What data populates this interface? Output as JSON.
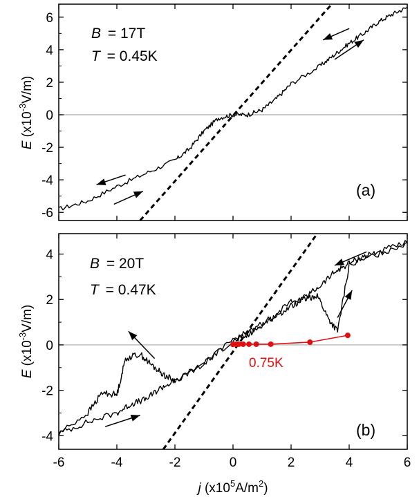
{
  "chart_data": [
    {
      "type": "line",
      "panel_label": "(a)",
      "annotation_B": "B = 17T",
      "annotation_T": "T = 0.45K",
      "annotation_B_var": "B",
      "annotation_B_val": "= 17T",
      "annotation_T_var": "T",
      "annotation_T_val": "= 0.45K",
      "ylabel": "E (x10⁻³V/m)",
      "xlim": [
        -6,
        6
      ],
      "ylim": [
        -6.5,
        6.8
      ],
      "yticks": [
        -6,
        -4,
        -2,
        0,
        2,
        4,
        6
      ],
      "ytick_labels": [
        "-6",
        "-4",
        "-2",
        "0",
        "2",
        "4",
        "6"
      ],
      "zero_line": true,
      "series": [
        {
          "style": "solid",
          "color": "#000000",
          "x": [
            -6,
            -5,
            -4,
            -3,
            -2,
            -1.5,
            -1,
            -0.5,
            0,
            0.5,
            1,
            1.5,
            2,
            3,
            3.5,
            4,
            4.5,
            5,
            5.5,
            6
          ],
          "y": [
            -5.8,
            -5.3,
            -4.4,
            -3.6,
            -2.8,
            -2.1,
            -1.0,
            -0.2,
            0.0,
            0.0,
            0.3,
            1.0,
            1.9,
            3.0,
            3.7,
            4.4,
            5.0,
            5.7,
            6.2,
            6.6
          ]
        },
        {
          "style": "dashed",
          "color": "#000000",
          "x": [
            -3.2,
            3.4
          ],
          "y": [
            -6.5,
            6.8
          ]
        }
      ],
      "arrows": [
        {
          "from": [
            4.0,
            5.3
          ],
          "to": [
            3.1,
            4.6
          ]
        },
        {
          "from": [
            3.5,
            3.4
          ],
          "to": [
            4.5,
            4.6
          ]
        },
        {
          "from": [
            -3.7,
            -3.7
          ],
          "to": [
            -4.7,
            -4.3
          ]
        },
        {
          "from": [
            -4.1,
            -5.5
          ],
          "to": [
            -3.1,
            -4.7
          ]
        }
      ]
    },
    {
      "type": "line",
      "panel_label": "(b)",
      "annotation_B": "B = 20T",
      "annotation_T": "T = 0.47K",
      "annotation_B_var": "B",
      "annotation_B_val": "= 20T",
      "annotation_T_var": "T",
      "annotation_T_val": "= 0.47K",
      "ylabel": "E (x10⁻³V/m)",
      "xlabel": "j (x10⁵A/m²)",
      "xlim": [
        -6,
        6
      ],
      "ylim": [
        -4.6,
        4.9
      ],
      "xticks": [
        -6,
        -4,
        -2,
        0,
        2,
        4,
        6
      ],
      "xtick_labels": [
        "-6",
        "-4",
        "-2",
        "0",
        "2",
        "4",
        "6"
      ],
      "yticks": [
        -4,
        -2,
        0,
        2,
        4
      ],
      "ytick_labels": [
        "-4",
        "-2",
        "0",
        "2",
        "4"
      ],
      "zero_line": true,
      "series": [
        {
          "style": "solid",
          "color": "#000000",
          "x": [
            -6,
            -5,
            -4,
            -3.5,
            -3,
            -2.5,
            -2,
            -1,
            0,
            0.5,
            1,
            1.5,
            2,
            2.5,
            3,
            3.5,
            4,
            4.5,
            5,
            6
          ],
          "y": [
            -3.9,
            -3.4,
            -3.0,
            -2.6,
            -2.4,
            -1.9,
            -1.6,
            -0.8,
            0.2,
            0.4,
            0.9,
            1.3,
            1.7,
            2.1,
            2.6,
            3.2,
            3.6,
            3.9,
            4.1,
            4.5
          ]
        },
        {
          "style": "solid",
          "color": "#000000",
          "x": [
            -6,
            -5,
            -4.5,
            -4,
            -3.7,
            -3.2,
            -2.8,
            -2.4,
            -2,
            -1,
            0,
            1,
            2,
            2.5,
            2.9,
            3.3,
            3.6,
            4,
            5,
            6
          ],
          "y": [
            -3.9,
            -3.0,
            -2.1,
            -2.2,
            -0.6,
            -0.4,
            -0.9,
            -1.3,
            -1.6,
            -0.8,
            0.2,
            0.9,
            1.9,
            2.0,
            2.2,
            1.1,
            0.6,
            3.5,
            4.0,
            4.5
          ]
        },
        {
          "style": "dashed",
          "color": "#000000",
          "x": [
            -2.4,
            2.9
          ],
          "y": [
            -4.6,
            4.9
          ]
        },
        {
          "name": "0.75K",
          "style": "markers+line",
          "color": "#e01010",
          "x": [
            0.0,
            0.1,
            0.2,
            0.35,
            0.55,
            0.8,
            1.3,
            2.65,
            3.95
          ],
          "y": [
            0.02,
            0.03,
            0.03,
            0.03,
            0.03,
            0.03,
            0.03,
            0.12,
            0.42
          ]
        }
      ],
      "arrows": [
        {
          "from": [
            4.6,
            4.1
          ],
          "to": [
            3.5,
            3.5
          ]
        },
        {
          "from": [
            3.6,
            1.2
          ],
          "to": [
            4.1,
            2.4
          ]
        },
        {
          "from": [
            -2.7,
            -0.6
          ],
          "to": [
            -3.6,
            0.6
          ]
        },
        {
          "from": [
            -4.4,
            -3.6
          ],
          "to": [
            -3.2,
            -3.1
          ]
        }
      ]
    }
  ]
}
